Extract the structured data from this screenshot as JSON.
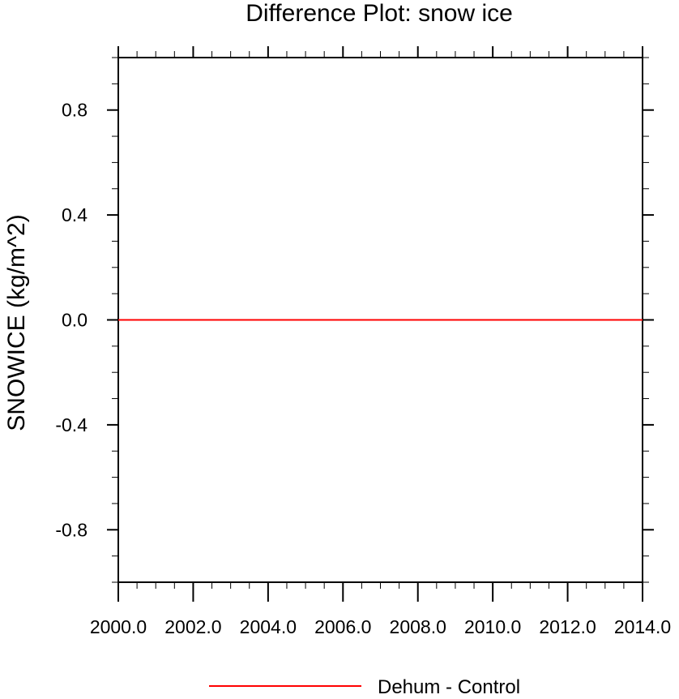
{
  "chart_data": {
    "type": "line",
    "title": "Difference Plot: snow ice",
    "xlabel": "",
    "ylabel": "SNOWICE  (kg/m^2)",
    "xlim": [
      2000,
      2014
    ],
    "ylim": [
      -1.0,
      1.0
    ],
    "x_ticks": [
      "2000.0",
      "2002.0",
      "2004.0",
      "2006.0",
      "2008.0",
      "2010.0",
      "2012.0",
      "2014.0"
    ],
    "x_tick_values": [
      2000,
      2002,
      2004,
      2006,
      2008,
      2010,
      2012,
      2014
    ],
    "y_ticks": [
      "0.8",
      "0.4",
      "0.0",
      "-0.4",
      "-0.8"
    ],
    "y_tick_values": [
      0.8,
      0.4,
      0.0,
      -0.4,
      -0.8
    ],
    "grid": false,
    "legend_position": "bottom",
    "series": [
      {
        "name": "Dehum - Control",
        "color": "#ff0000",
        "x": [
          2000,
          2014
        ],
        "y": [
          0.0,
          0.0
        ]
      }
    ]
  }
}
